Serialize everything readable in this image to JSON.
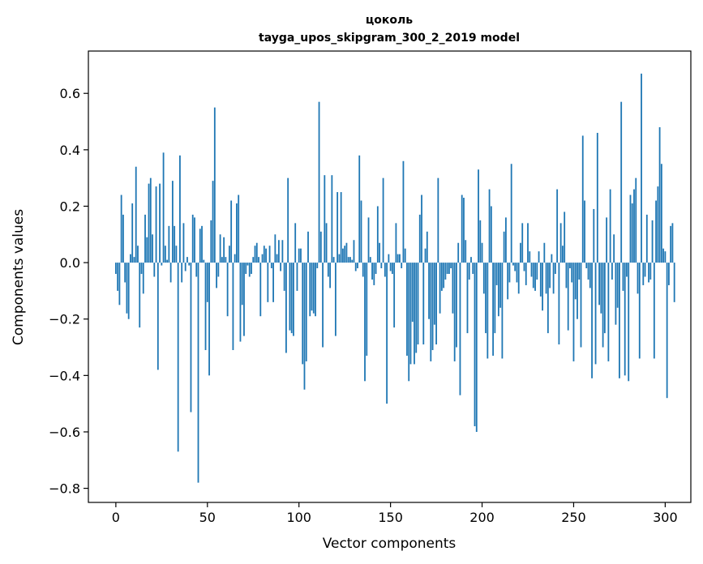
{
  "chart_data": {
    "type": "bar",
    "title": "цоколь",
    "subtitle": "tayga_upos_skipgram_300_2_2019 model",
    "xlabel": "Vector components",
    "ylabel": "Components values",
    "xlim": [
      -15,
      314
    ],
    "ylim": [
      -0.85,
      0.75
    ],
    "xticks": [
      0,
      50,
      100,
      150,
      200,
      250,
      300
    ],
    "yticks": [
      -0.8,
      -0.6,
      -0.4,
      -0.2,
      0.0,
      0.2,
      0.4,
      0.6
    ],
    "xtick_labels": [
      "0",
      "50",
      "100",
      "150",
      "200",
      "250",
      "300"
    ],
    "ytick_labels": [
      "−0.8",
      "−0.6",
      "−0.4",
      "−0.2",
      "0.0",
      "0.2",
      "0.4",
      "0.6"
    ],
    "bar_color": "#1f77b4",
    "values": [
      -0.04,
      -0.1,
      -0.15,
      0.24,
      0.17,
      -0.07,
      -0.18,
      -0.2,
      0.03,
      0.21,
      0.02,
      0.34,
      0.06,
      -0.23,
      -0.04,
      -0.11,
      0.17,
      0.09,
      0.28,
      0.3,
      0.1,
      -0.05,
      0.27,
      -0.38,
      0.28,
      -0.01,
      0.39,
      0.06,
      0.01,
      0.13,
      -0.07,
      0.29,
      0.13,
      0.06,
      -0.67,
      0.38,
      -0.07,
      0.14,
      -0.03,
      0.02,
      -0.01,
      -0.53,
      0.17,
      0.16,
      -0.05,
      -0.78,
      0.12,
      0.13,
      0.01,
      -0.31,
      -0.14,
      -0.4,
      0.15,
      0.29,
      0.55,
      -0.09,
      -0.05,
      0.1,
      0.02,
      0.09,
      0.02,
      -0.19,
      0.06,
      0.22,
      -0.31,
      0.03,
      0.21,
      0.24,
      -0.28,
      -0.15,
      -0.26,
      -0.04,
      -0.01,
      -0.05,
      -0.04,
      0.02,
      0.06,
      0.07,
      0.02,
      -0.19,
      0.03,
      0.06,
      0.05,
      -0.14,
      0.06,
      -0.02,
      -0.14,
      0.1,
      0.03,
      0.08,
      -0.03,
      0.08,
      -0.1,
      -0.32,
      0.3,
      -0.24,
      -0.25,
      -0.26,
      0.14,
      -0.1,
      0.05,
      0.05,
      -0.36,
      -0.45,
      -0.35,
      0.11,
      -0.19,
      -0.17,
      -0.18,
      -0.19,
      -0.02,
      0.57,
      0.11,
      -0.3,
      0.31,
      0.14,
      -0.05,
      -0.09,
      0.31,
      0.02,
      -0.26,
      0.25,
      0.03,
      0.25,
      0.05,
      0.06,
      0.07,
      0.02,
      0.02,
      0.01,
      0.08,
      -0.03,
      -0.02,
      0.38,
      0.22,
      -0.05,
      -0.42,
      -0.33,
      0.16,
      0.02,
      -0.06,
      -0.08,
      -0.04,
      0.2,
      0.07,
      -0.02,
      0.3,
      -0.05,
      -0.5,
      0.03,
      -0.03,
      -0.04,
      -0.23,
      0.14,
      0.03,
      0.03,
      -0.02,
      0.36,
      0.05,
      -0.33,
      -0.42,
      -0.36,
      -0.21,
      -0.36,
      -0.32,
      -0.29,
      0.17,
      0.24,
      -0.29,
      0.05,
      0.11,
      -0.2,
      -0.35,
      -0.31,
      -0.22,
      -0.29,
      0.3,
      -0.18,
      -0.1,
      -0.09,
      -0.06,
      -0.04,
      -0.04,
      -0.02,
      -0.18,
      -0.35,
      -0.3,
      0.07,
      -0.47,
      0.24,
      0.23,
      0.08,
      -0.25,
      -0.06,
      0.02,
      -0.04,
      -0.58,
      -0.6,
      0.33,
      0.15,
      0.07,
      -0.11,
      -0.25,
      -0.34,
      0.26,
      0.2,
      -0.33,
      -0.25,
      -0.08,
      -0.19,
      -0.16,
      -0.34,
      0.11,
      0.16,
      -0.13,
      -0.07,
      0.35,
      -0.01,
      -0.03,
      -0.07,
      -0.11,
      0.07,
      0.14,
      -0.03,
      -0.08,
      0.14,
      0.04,
      -0.05,
      -0.09,
      -0.1,
      -0.06,
      0.04,
      -0.12,
      -0.17,
      0.07,
      -0.11,
      -0.25,
      -0.09,
      0.03,
      -0.11,
      -0.04,
      0.26,
      -0.29,
      0.14,
      0.06,
      0.18,
      -0.09,
      -0.24,
      -0.02,
      -0.07,
      -0.35,
      -0.13,
      -0.2,
      -0.06,
      -0.3,
      0.45,
      0.22,
      -0.02,
      -0.06,
      -0.09,
      -0.41,
      0.19,
      -0.36,
      0.46,
      -0.15,
      -0.18,
      -0.3,
      -0.25,
      0.16,
      -0.35,
      0.26,
      -0.06,
      0.1,
      -0.22,
      -0.16,
      -0.41,
      0.57,
      -0.1,
      -0.4,
      -0.05,
      -0.42,
      0.24,
      0.21,
      0.26,
      0.3,
      -0.11,
      -0.34,
      0.67,
      -0.08,
      -0.05,
      0.17,
      -0.07,
      -0.06,
      0.15,
      -0.34,
      0.22,
      0.27,
      0.48,
      0.35,
      0.05,
      0.04,
      -0.48,
      -0.08,
      0.13,
      0.14,
      -0.14
    ]
  }
}
